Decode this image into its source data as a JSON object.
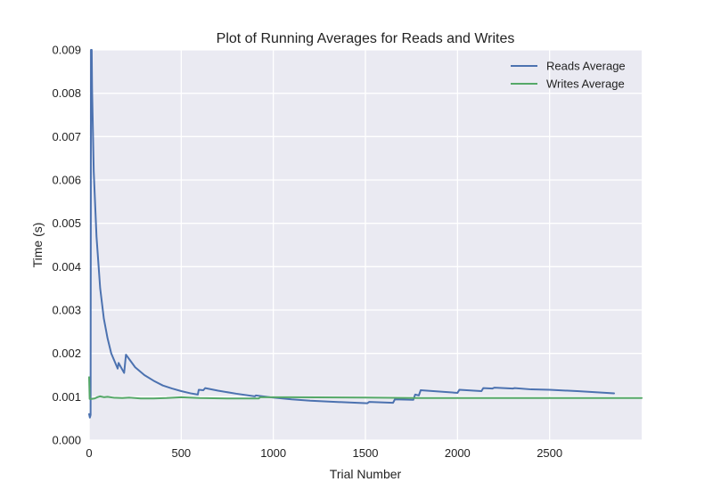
{
  "chart_data": {
    "type": "line",
    "title": "Plot of Running Averages for Reads and Writes",
    "xlabel": "Trial Number",
    "ylabel": "Time (s)",
    "xlim": [
      0,
      3000
    ],
    "ylim": [
      0,
      0.009
    ],
    "x_ticks": [
      0,
      500,
      1000,
      1500,
      2000,
      2500
    ],
    "x_tick_labels": [
      "0",
      "500",
      "1000",
      "1500",
      "2000",
      "2500"
    ],
    "y_ticks": [
      0,
      0.001,
      0.002,
      0.003,
      0.004,
      0.005,
      0.006,
      0.007,
      0.008,
      0.009
    ],
    "y_tick_labels": [
      "0.000",
      "0.001",
      "0.002",
      "0.003",
      "0.004",
      "0.005",
      "0.006",
      "0.007",
      "0.008",
      "0.009"
    ],
    "grid": true,
    "legend_position": "top-right",
    "background": "#eaeaf2",
    "series": [
      {
        "name": "Reads Average",
        "color": "#4c72b0",
        "points": [
          [
            0,
            0.0006
          ],
          [
            4,
            0.00052
          ],
          [
            8,
            0.00058
          ],
          [
            10,
            0.009
          ],
          [
            14,
            0.009
          ],
          [
            16,
            0.0081
          ],
          [
            25,
            0.0062
          ],
          [
            40,
            0.0047
          ],
          [
            60,
            0.0035
          ],
          [
            80,
            0.0028
          ],
          [
            100,
            0.00235
          ],
          [
            120,
            0.002
          ],
          [
            140,
            0.0018
          ],
          [
            155,
            0.00165
          ],
          [
            160,
            0.00178
          ],
          [
            190,
            0.00155
          ],
          [
            200,
            0.00197
          ],
          [
            250,
            0.00168
          ],
          [
            300,
            0.0015
          ],
          [
            350,
            0.00137
          ],
          [
            400,
            0.00126
          ],
          [
            450,
            0.00119
          ],
          [
            500,
            0.00113
          ],
          [
            550,
            0.00108
          ],
          [
            590,
            0.00105
          ],
          [
            595,
            0.00116
          ],
          [
            620,
            0.00115
          ],
          [
            630,
            0.0012
          ],
          [
            700,
            0.00114
          ],
          [
            800,
            0.00107
          ],
          [
            900,
            0.00101
          ],
          [
            905,
            0.00103
          ],
          [
            1000,
            0.00098
          ],
          [
            1100,
            0.00094
          ],
          [
            1200,
            0.00091
          ],
          [
            1300,
            0.00089
          ],
          [
            1400,
            0.00087
          ],
          [
            1510,
            0.00085
          ],
          [
            1520,
            0.00088
          ],
          [
            1650,
            0.00086
          ],
          [
            1660,
            0.00094
          ],
          [
            1760,
            0.00093
          ],
          [
            1770,
            0.00105
          ],
          [
            1790,
            0.00103
          ],
          [
            1800,
            0.00115
          ],
          [
            2000,
            0.00109
          ],
          [
            2010,
            0.00116
          ],
          [
            2130,
            0.00113
          ],
          [
            2140,
            0.0012
          ],
          [
            2190,
            0.00119
          ],
          [
            2200,
            0.00121
          ],
          [
            2300,
            0.00119
          ],
          [
            2310,
            0.0012
          ],
          [
            2400,
            0.00117
          ],
          [
            2500,
            0.00116
          ],
          [
            2650,
            0.00113
          ],
          [
            2850,
            0.00108
          ]
        ]
      },
      {
        "name": "Writes Average",
        "color": "#55a868",
        "points": [
          [
            0,
            0.00145
          ],
          [
            3,
            0.00095
          ],
          [
            12,
            0.00095
          ],
          [
            30,
            0.00096
          ],
          [
            45,
            0.00099
          ],
          [
            60,
            0.00101
          ],
          [
            80,
            0.00099
          ],
          [
            100,
            0.001
          ],
          [
            130,
            0.00098
          ],
          [
            180,
            0.00097
          ],
          [
            220,
            0.00098
          ],
          [
            280,
            0.00096
          ],
          [
            350,
            0.00096
          ],
          [
            420,
            0.00097
          ],
          [
            500,
            0.00099
          ],
          [
            600,
            0.00097
          ],
          [
            750,
            0.00096
          ],
          [
            920,
            0.00096
          ],
          [
            930,
            0.00099
          ],
          [
            1100,
            0.00099
          ],
          [
            1500,
            0.00098
          ],
          [
            1800,
            0.00097
          ],
          [
            2200,
            0.00097
          ],
          [
            2600,
            0.00097
          ],
          [
            3000,
            0.00097
          ]
        ]
      }
    ]
  }
}
